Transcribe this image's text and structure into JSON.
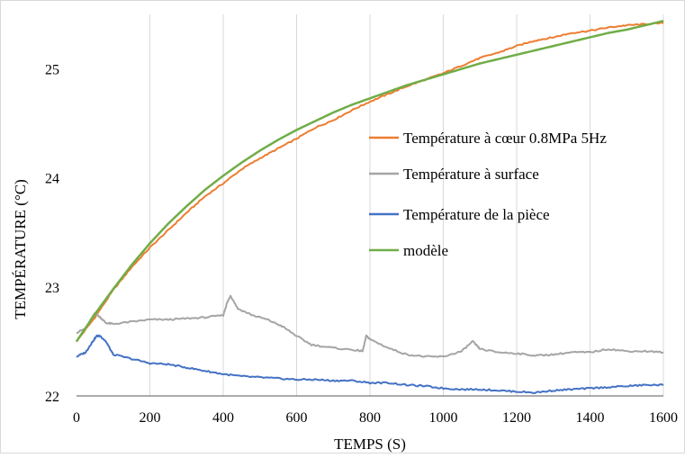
{
  "chart_data": {
    "type": "line",
    "title": "",
    "xlabel": "TEMPS (S)",
    "ylabel": "TEMPÉRATURE (°C)",
    "xlim": [
      0,
      1600
    ],
    "ylim": [
      22,
      25.5
    ],
    "xticks": [
      "0",
      "200",
      "400",
      "600",
      "800",
      "1000",
      "1200",
      "1400",
      "1600"
    ],
    "yticks": [
      "22",
      "23",
      "24",
      "25"
    ],
    "grid": "vertical",
    "legend": "right",
    "series": [
      {
        "name": "Température à cœur 0.8MPa 5Hz",
        "color": "#ED7D31",
        "x": [
          0,
          50,
          100,
          150,
          200,
          250,
          300,
          350,
          400,
          450,
          500,
          550,
          600,
          650,
          700,
          750,
          800,
          850,
          900,
          950,
          1000,
          1050,
          1100,
          1150,
          1200,
          1250,
          1300,
          1350,
          1400,
          1450,
          1500,
          1550,
          1600
        ],
        "y": [
          22.5,
          22.72,
          22.97,
          23.18,
          23.36,
          23.52,
          23.68,
          23.83,
          23.95,
          24.08,
          24.18,
          24.27,
          24.36,
          24.46,
          24.53,
          24.62,
          24.7,
          24.77,
          24.84,
          24.9,
          24.96,
          25.03,
          25.1,
          25.15,
          25.21,
          25.26,
          25.29,
          25.33,
          25.35,
          25.38,
          25.4,
          25.41,
          25.42
        ]
      },
      {
        "name": "Température à surface",
        "color": "#A5A5A5",
        "x": [
          0,
          25,
          50,
          65,
          80,
          100,
          150,
          200,
          250,
          300,
          350,
          400,
          410,
          420,
          440,
          480,
          520,
          560,
          600,
          640,
          700,
          760,
          780,
          790,
          800,
          850,
          900,
          950,
          1000,
          1050,
          1080,
          1100,
          1150,
          1200,
          1250,
          1300,
          1350,
          1400,
          1450,
          1500,
          1550,
          1600
        ],
        "y": [
          22.58,
          22.62,
          22.76,
          22.72,
          22.67,
          22.66,
          22.68,
          22.7,
          22.7,
          22.71,
          22.72,
          22.74,
          22.85,
          22.92,
          22.8,
          22.74,
          22.7,
          22.64,
          22.55,
          22.47,
          22.44,
          22.42,
          22.41,
          22.55,
          22.52,
          22.44,
          22.38,
          22.36,
          22.36,
          22.41,
          22.5,
          22.43,
          22.4,
          22.39,
          22.37,
          22.38,
          22.4,
          22.4,
          22.43,
          22.41,
          22.41,
          22.4
        ]
      },
      {
        "name": "Température de la pièce",
        "color": "#4472C4",
        "x": [
          0,
          25,
          40,
          55,
          65,
          80,
          100,
          150,
          200,
          250,
          300,
          350,
          400,
          450,
          500,
          550,
          600,
          650,
          700,
          750,
          800,
          850,
          900,
          950,
          1000,
          1050,
          1100,
          1150,
          1200,
          1250,
          1300,
          1350,
          1400,
          1450,
          1500,
          1550,
          1600
        ],
        "y": [
          22.36,
          22.4,
          22.48,
          22.55,
          22.55,
          22.5,
          22.38,
          22.34,
          22.3,
          22.29,
          22.26,
          22.23,
          22.2,
          22.18,
          22.17,
          22.16,
          22.15,
          22.15,
          22.14,
          22.14,
          22.12,
          22.12,
          22.1,
          22.09,
          22.07,
          22.06,
          22.06,
          22.05,
          22.04,
          22.03,
          22.05,
          22.06,
          22.07,
          22.08,
          22.09,
          22.1,
          22.1
        ]
      },
      {
        "name": "modèle",
        "color": "#70AD47",
        "x": [
          0,
          50,
          100,
          150,
          200,
          250,
          300,
          350,
          400,
          450,
          500,
          550,
          600,
          650,
          700,
          750,
          800,
          850,
          900,
          950,
          1000,
          1050,
          1100,
          1150,
          1200,
          1250,
          1300,
          1350,
          1400,
          1450,
          1500,
          1550,
          1600
        ],
        "y": [
          22.5,
          22.75,
          22.98,
          23.2,
          23.4,
          23.58,
          23.74,
          23.89,
          24.02,
          24.14,
          24.25,
          24.35,
          24.44,
          24.52,
          24.6,
          24.67,
          24.73,
          24.79,
          24.85,
          24.9,
          24.95,
          25.0,
          25.05,
          25.09,
          25.13,
          25.17,
          25.21,
          25.25,
          25.29,
          25.33,
          25.36,
          25.4,
          25.44
        ]
      }
    ]
  }
}
